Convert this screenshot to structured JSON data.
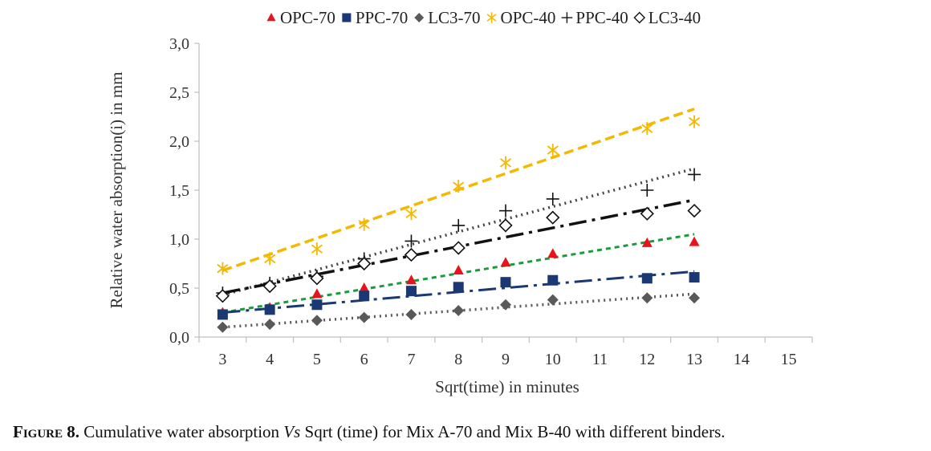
{
  "chart_data": {
    "type": "scatter",
    "xlabel": "Sqrt(time) in minutes",
    "ylabel": "Relative water absorption(i) in mm",
    "xlim": [
      2.5,
      15.5
    ],
    "ylim": [
      0,
      3
    ],
    "x_ticks": [
      "3",
      "4",
      "5",
      "6",
      "7",
      "8",
      "9",
      "10",
      "11",
      "12",
      "13",
      "14",
      "15"
    ],
    "y_ticks": [
      "0,0",
      "0,5",
      "1,0",
      "1,5",
      "2,0",
      "2,5",
      "3,0"
    ],
    "grid": false,
    "legend_position": "top",
    "series": [
      {
        "name": "OPC-70",
        "marker": "triangle",
        "color": "#e8141c",
        "x": [
          3,
          4,
          5,
          6,
          7,
          8,
          9,
          10,
          12,
          13
        ],
        "y": [
          0.25,
          0.3,
          0.44,
          0.5,
          0.58,
          0.68,
          0.76,
          0.85,
          0.96,
          0.97
        ],
        "trend": {
          "x0": 3,
          "y0": 0.25,
          "x1": 13,
          "y1": 1.05,
          "color": "#1a9b3c",
          "dash": "6,5",
          "width": 3
        }
      },
      {
        "name": "PPC-70",
        "marker": "square",
        "color": "#1a3872",
        "x": [
          3,
          4,
          5,
          6,
          7,
          8,
          9,
          10,
          12,
          13
        ],
        "y": [
          0.23,
          0.28,
          0.33,
          0.42,
          0.47,
          0.51,
          0.56,
          0.58,
          0.6,
          0.61
        ],
        "trend": {
          "x0": 3,
          "y0": 0.25,
          "x1": 13,
          "y1": 0.67,
          "color": "#1a3872",
          "dash": "22,7,4,7",
          "width": 3
        }
      },
      {
        "name": "LC3-70",
        "marker": "diamond",
        "color": "#595959",
        "x": [
          3,
          4,
          5,
          6,
          7,
          8,
          9,
          10,
          12,
          13
        ],
        "y": [
          0.1,
          0.13,
          0.17,
          0.2,
          0.23,
          0.27,
          0.33,
          0.38,
          0.4,
          0.4
        ],
        "trend": {
          "x0": 3,
          "y0": 0.1,
          "x1": 13,
          "y1": 0.44,
          "color": "#595959",
          "dash": "2,5",
          "width": 3.5
        }
      },
      {
        "name": "OPC-40",
        "marker": "asterisk",
        "color": "#f5b800",
        "x": [
          3,
          4,
          5,
          6,
          7,
          8,
          9,
          10,
          12,
          13
        ],
        "y": [
          0.7,
          0.8,
          0.9,
          1.15,
          1.26,
          1.54,
          1.78,
          1.91,
          2.13,
          2.2
        ],
        "trend": {
          "x0": 3,
          "y0": 0.68,
          "x1": 13,
          "y1": 2.33,
          "color": "#f5b800",
          "dash": "12,6",
          "width": 3.5
        }
      },
      {
        "name": "PPC-40",
        "marker": "plus",
        "color": "#111111",
        "x": [
          3,
          4,
          5,
          6,
          7,
          8,
          9,
          10,
          12,
          13
        ],
        "y": [
          0.45,
          0.55,
          0.62,
          0.8,
          0.98,
          1.14,
          1.29,
          1.41,
          1.5,
          1.66
        ],
        "trend": {
          "x0": 3,
          "y0": 0.43,
          "x1": 13,
          "y1": 1.72,
          "color": "#444444",
          "dash": "2,5",
          "width": 3.5
        }
      },
      {
        "name": "LC3-40",
        "marker": "diamond-open",
        "color": "#111111",
        "x": [
          3,
          4,
          5,
          6,
          7,
          8,
          9,
          10,
          12,
          13
        ],
        "y": [
          0.42,
          0.52,
          0.6,
          0.75,
          0.84,
          0.91,
          1.14,
          1.22,
          1.26,
          1.29
        ],
        "trend": {
          "x0": 3,
          "y0": 0.45,
          "x1": 13,
          "y1": 1.4,
          "color": "#111111",
          "dash": "22,7,4,7",
          "width": 3.5
        }
      }
    ]
  },
  "caption": {
    "label": "Figure 8.",
    "text_a": " Cumulative water absorption ",
    "vs": "Vs",
    "text_b": " Sqrt (time) for Mix A-70 and Mix B-40  with different binders."
  }
}
